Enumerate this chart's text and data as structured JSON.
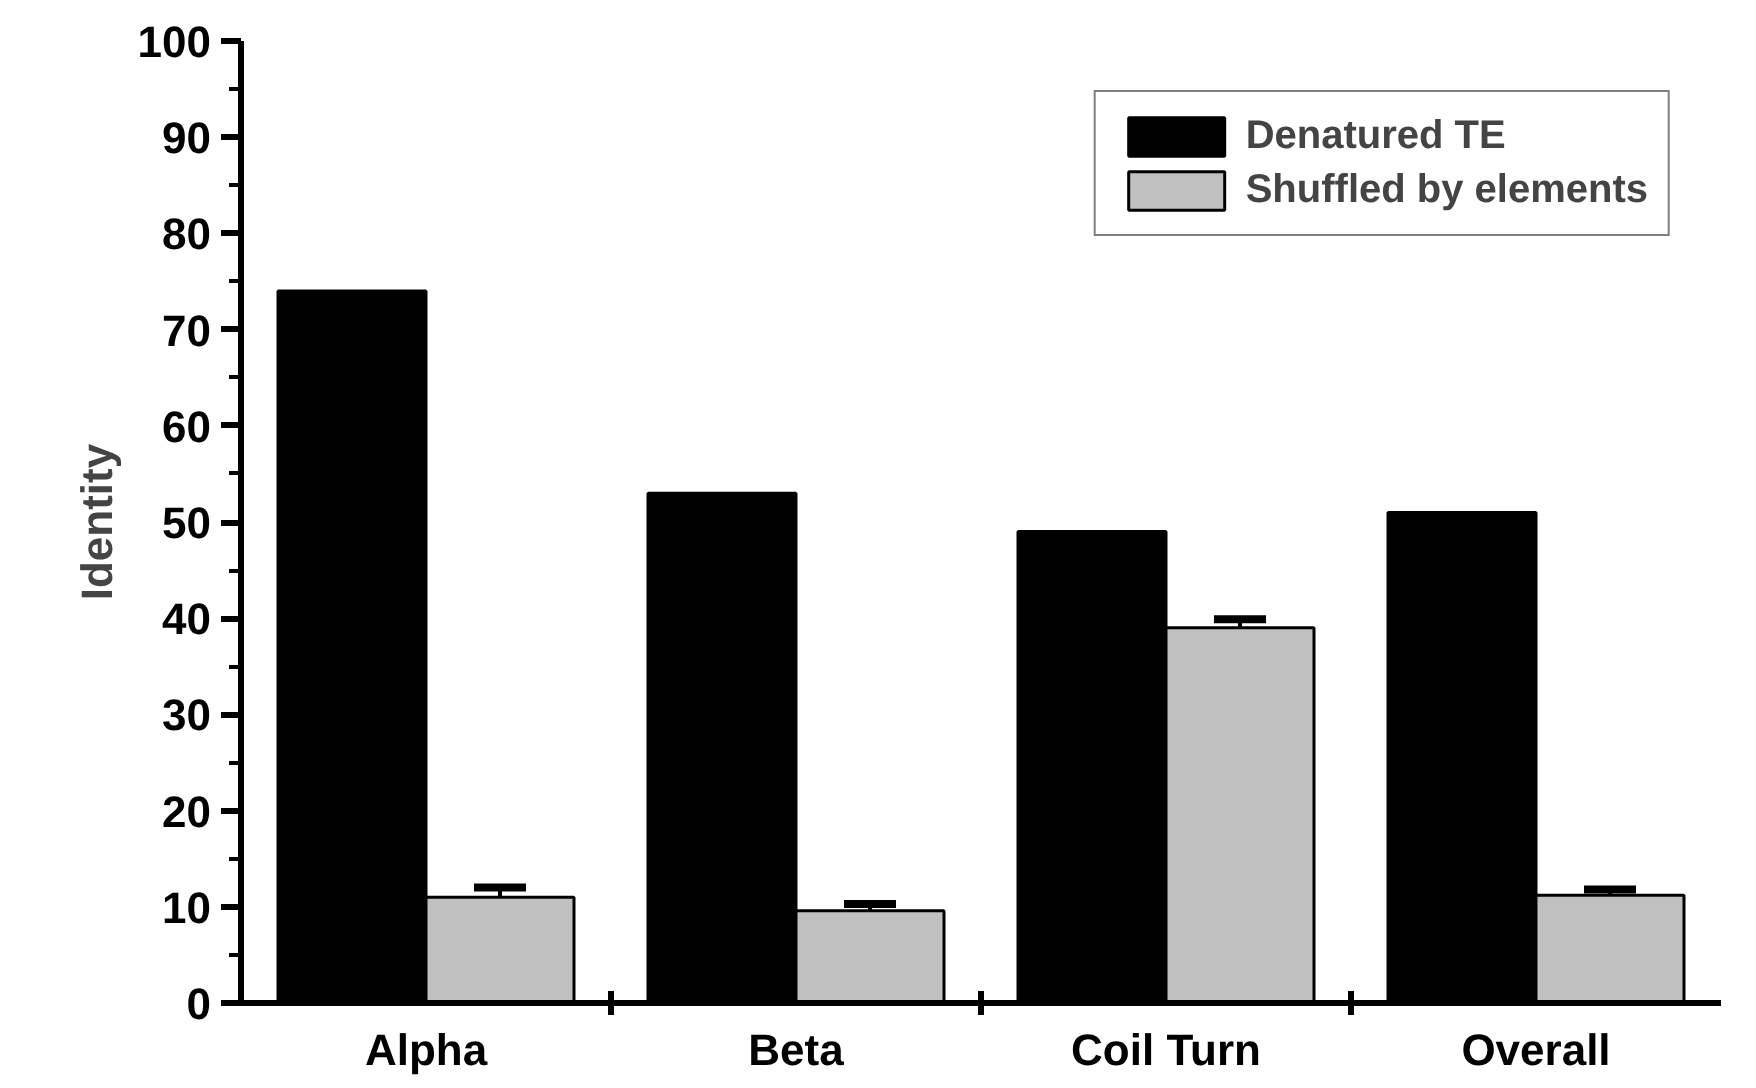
{
  "chart_data": {
    "type": "bar",
    "ylabel": "Identity",
    "categories": [
      "Alpha",
      "Beta",
      "Coil Turn",
      "Overall"
    ],
    "series": [
      {
        "name": "Denatured TE",
        "color": "#000000",
        "values": [
          74,
          53,
          49,
          51
        ]
      },
      {
        "name": "Shuffled by elements",
        "color": "#c0c0c0",
        "values": [
          11,
          9.6,
          39,
          11.2
        ],
        "errors": [
          1,
          0.7,
          0.9,
          0.6
        ]
      }
    ],
    "ylim": [
      0,
      100
    ],
    "yticks": [
      0,
      10,
      20,
      30,
      40,
      50,
      60,
      70,
      80,
      90,
      100
    ],
    "grid": false,
    "legend": "top right"
  }
}
